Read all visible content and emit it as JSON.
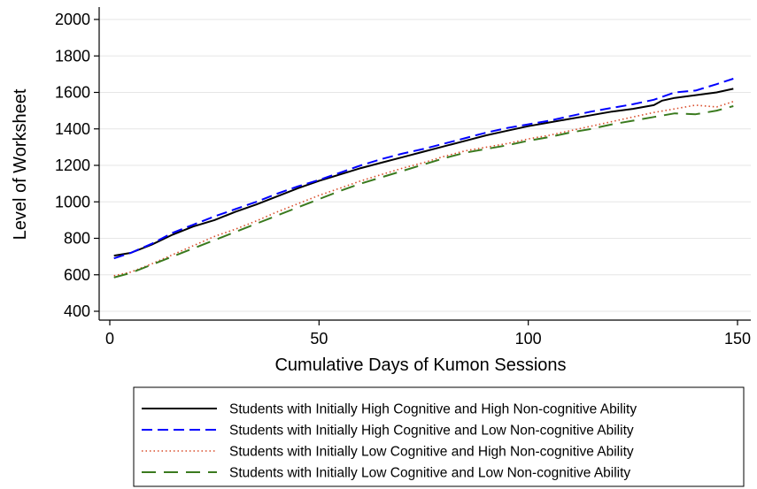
{
  "chart_data": {
    "type": "line",
    "title": "",
    "xlabel": "Cumulative Days of Kumon Sessions",
    "ylabel": "Level of Worksheet",
    "xlim": [
      0,
      150
    ],
    "ylim": [
      400,
      2000
    ],
    "xticks": [
      0,
      50,
      100,
      150
    ],
    "yticks": [
      400,
      600,
      800,
      1000,
      1200,
      1400,
      1600,
      1800,
      2000
    ],
    "grid": true,
    "legend_position": "bottom",
    "series": [
      {
        "name": "Students with Initially High Cognitive and High Non-cognitive Ability",
        "color": "#000000",
        "dash": "solid",
        "x": [
          1,
          5,
          10,
          15,
          20,
          25,
          30,
          35,
          40,
          45,
          50,
          55,
          60,
          65,
          70,
          75,
          80,
          85,
          90,
          95,
          100,
          105,
          110,
          115,
          120,
          125,
          130,
          132,
          135,
          140,
          145,
          149
        ],
        "y": [
          705,
          720,
          765,
          820,
          865,
          900,
          945,
          985,
          1030,
          1075,
          1115,
          1150,
          1185,
          1215,
          1245,
          1275,
          1305,
          1335,
          1365,
          1390,
          1415,
          1435,
          1455,
          1475,
          1495,
          1510,
          1530,
          1555,
          1570,
          1585,
          1600,
          1620
        ]
      },
      {
        "name": "Students with Initially High Cognitive and Low Non-cognitive Ability",
        "color": "#0000ff",
        "dash": "long-dash",
        "x": [
          1,
          5,
          10,
          15,
          20,
          25,
          30,
          35,
          40,
          45,
          50,
          55,
          60,
          65,
          70,
          75,
          80,
          85,
          90,
          95,
          100,
          105,
          110,
          115,
          120,
          125,
          130,
          135,
          140,
          145,
          149
        ],
        "y": [
          690,
          720,
          770,
          830,
          875,
          920,
          960,
          1000,
          1045,
          1085,
          1120,
          1160,
          1200,
          1235,
          1265,
          1290,
          1320,
          1350,
          1380,
          1405,
          1425,
          1445,
          1470,
          1495,
          1515,
          1535,
          1560,
          1600,
          1610,
          1645,
          1675
        ]
      },
      {
        "name": "Students with Initially Low Cognitive and High Non-cognitive Ability",
        "color": "#d94c2a",
        "dash": "dotted",
        "x": [
          1,
          5,
          10,
          15,
          20,
          25,
          30,
          35,
          40,
          45,
          50,
          55,
          60,
          65,
          70,
          75,
          80,
          85,
          90,
          95,
          100,
          105,
          110,
          115,
          120,
          125,
          130,
          135,
          140,
          145,
          149
        ],
        "y": [
          595,
          615,
          660,
          710,
          760,
          810,
          850,
          895,
          945,
          990,
          1035,
          1075,
          1115,
          1150,
          1185,
          1215,
          1250,
          1280,
          1300,
          1320,
          1345,
          1365,
          1390,
          1415,
          1440,
          1465,
          1490,
          1510,
          1530,
          1520,
          1550
        ]
      },
      {
        "name": "Students with Initially Low Cognitive and Low Non-cognitive Ability",
        "color": "#3a7a1e",
        "dash": "long-dash-sparse",
        "x": [
          1,
          5,
          10,
          15,
          20,
          25,
          30,
          35,
          40,
          45,
          50,
          55,
          60,
          65,
          70,
          75,
          80,
          85,
          90,
          95,
          100,
          105,
          110,
          115,
          120,
          125,
          130,
          135,
          140,
          145,
          149
        ],
        "y": [
          585,
          610,
          655,
          700,
          745,
          790,
          835,
          880,
          925,
          970,
          1015,
          1060,
          1100,
          1135,
          1170,
          1205,
          1240,
          1270,
          1290,
          1310,
          1335,
          1355,
          1380,
          1400,
          1425,
          1445,
          1465,
          1485,
          1480,
          1500,
          1525
        ]
      }
    ]
  }
}
